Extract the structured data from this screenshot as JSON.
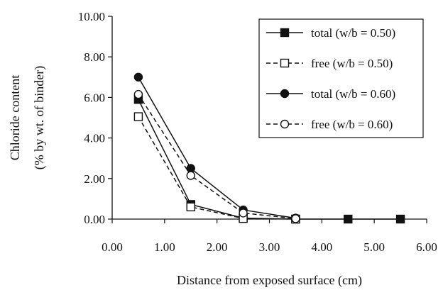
{
  "chart_data": {
    "type": "line",
    "title": "",
    "xlabel": "Distance from exposed surface (cm)",
    "ylabel_lines": [
      "Chloride content",
      "(% by wt. of binder)"
    ],
    "xlim": [
      0,
      6
    ],
    "ylim": [
      0,
      10
    ],
    "x_ticks": [
      "0.00",
      "1.00",
      "2.00",
      "3.00",
      "4.00",
      "5.00",
      "6.00"
    ],
    "y_ticks": [
      "0.00",
      "2.00",
      "4.00",
      "6.00",
      "8.00",
      "10.00"
    ],
    "grid": false,
    "legend_position": "top-right",
    "series": [
      {
        "name": "total (w/b = 0.50)",
        "marker": "square-filled",
        "line": "solid",
        "x": [
          0.5,
          1.5,
          2.5,
          3.5,
          4.5,
          5.5
        ],
        "y": [
          5.9,
          0.72,
          0.05,
          0.0,
          0.0,
          0.0
        ]
      },
      {
        "name": "free (w/b = 0.50)",
        "marker": "square-open",
        "line": "dashed",
        "x": [
          0.5,
          1.5,
          2.5,
          3.5
        ],
        "y": [
          5.05,
          0.6,
          0.03,
          0.0
        ]
      },
      {
        "name": "total (w/b = 0.60)",
        "marker": "circle-filled",
        "line": "solid",
        "x": [
          0.5,
          1.5,
          2.5,
          3.5
        ],
        "y": [
          7.0,
          2.5,
          0.45,
          0.05
        ]
      },
      {
        "name": "free (w/b = 0.60)",
        "marker": "circle-open",
        "line": "dashed",
        "x": [
          0.5,
          1.5,
          2.5,
          3.5
        ],
        "y": [
          6.15,
          2.15,
          0.3,
          0.02
        ]
      }
    ],
    "colors": {
      "line": "#111111",
      "marker": "#111111",
      "background": "#ffffff"
    }
  }
}
